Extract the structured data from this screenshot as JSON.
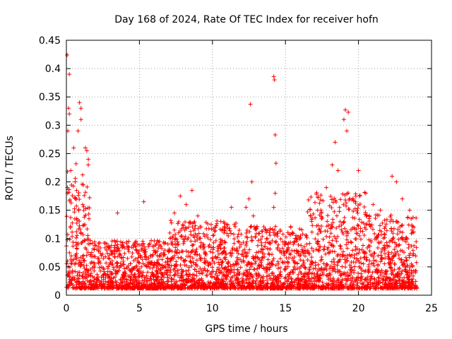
{
  "chart_data": {
    "type": "scatter",
    "title": "Day 168 of 2024, Rate Of TEC Index for receiver hofn",
    "xlabel": "GPS time / hours",
    "ylabel": "ROTI / TECUs",
    "xlim": [
      0,
      25
    ],
    "ylim": [
      0,
      0.45
    ],
    "xticks": [
      "0",
      "5",
      "10",
      "15",
      "20",
      "25"
    ],
    "yticks": [
      "0",
      "0.05",
      "0.1",
      "0.15",
      "0.2",
      "0.25",
      "0.3",
      "0.35",
      "0.4",
      "0.45"
    ],
    "grid": true,
    "marker": "+",
    "color": "#ff0000",
    "points_sample": [
      [
        0.05,
        0.424
      ],
      [
        0.2,
        0.39
      ],
      [
        0.15,
        0.33
      ],
      [
        0.2,
        0.32
      ],
      [
        0.1,
        0.29
      ],
      [
        0.5,
        0.26
      ],
      [
        0.8,
        0.29
      ],
      [
        0.9,
        0.34
      ],
      [
        1.0,
        0.33
      ],
      [
        1.0,
        0.31
      ],
      [
        1.3,
        0.26
      ],
      [
        1.4,
        0.255
      ],
      [
        1.5,
        0.23
      ],
      [
        0.3,
        0.22
      ],
      [
        0.6,
        0.2
      ],
      [
        3.5,
        0.145
      ],
      [
        5.3,
        0.165
      ],
      [
        7.4,
        0.145
      ],
      [
        7.8,
        0.175
      ],
      [
        8.2,
        0.16
      ],
      [
        8.6,
        0.185
      ],
      [
        9.0,
        0.14
      ],
      [
        10.2,
        0.12
      ],
      [
        11.3,
        0.155
      ],
      [
        12.3,
        0.155
      ],
      [
        12.6,
        0.337
      ],
      [
        12.7,
        0.2
      ],
      [
        12.5,
        0.17
      ],
      [
        12.8,
        0.14
      ],
      [
        14.2,
        0.386
      ],
      [
        14.25,
        0.38
      ],
      [
        14.3,
        0.283
      ],
      [
        14.35,
        0.233
      ],
      [
        14.3,
        0.18
      ],
      [
        14.2,
        0.155
      ],
      [
        16.7,
        0.14
      ],
      [
        17.2,
        0.15
      ],
      [
        17.8,
        0.19
      ],
      [
        18.2,
        0.23
      ],
      [
        18.4,
        0.27
      ],
      [
        18.6,
        0.22
      ],
      [
        19.0,
        0.31
      ],
      [
        19.1,
        0.327
      ],
      [
        19.3,
        0.323
      ],
      [
        19.2,
        0.29
      ],
      [
        20.0,
        0.22
      ],
      [
        20.5,
        0.18
      ],
      [
        21.0,
        0.16
      ],
      [
        21.5,
        0.15
      ],
      [
        22.3,
        0.21
      ],
      [
        22.6,
        0.2
      ],
      [
        23.0,
        0.17
      ],
      [
        23.5,
        0.15
      ],
      [
        23.8,
        0.12
      ]
    ]
  }
}
